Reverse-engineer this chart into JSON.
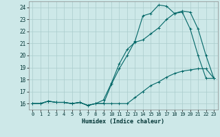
{
  "xlabel": "Humidex (Indice chaleur)",
  "xlim": [
    -0.5,
    23.5
  ],
  "ylim": [
    15.5,
    24.5
  ],
  "yticks": [
    16,
    17,
    18,
    19,
    20,
    21,
    22,
    23,
    24
  ],
  "xticks": [
    0,
    1,
    2,
    3,
    4,
    5,
    6,
    7,
    8,
    9,
    10,
    11,
    12,
    13,
    14,
    15,
    16,
    17,
    18,
    19,
    20,
    21,
    22,
    23
  ],
  "background_color": "#cde8e8",
  "grid_color": "#aacccc",
  "line_color": "#006666",
  "series1_x": [
    0,
    1,
    2,
    3,
    4,
    5,
    6,
    7,
    8,
    9,
    10,
    11,
    12,
    13,
    14,
    15,
    16,
    17,
    18,
    19,
    20,
    21,
    22,
    23
  ],
  "series1_y": [
    16.0,
    16.0,
    16.2,
    16.1,
    16.1,
    16.0,
    16.1,
    15.85,
    16.0,
    16.0,
    17.6,
    18.9,
    20.0,
    21.2,
    23.3,
    23.5,
    24.2,
    24.1,
    23.5,
    23.6,
    22.2,
    20.0,
    18.1,
    18.1
  ],
  "series2_x": [
    0,
    1,
    2,
    3,
    4,
    5,
    6,
    7,
    8,
    9,
    10,
    11,
    12,
    13,
    14,
    15,
    16,
    17,
    18,
    19,
    20,
    21,
    22,
    23
  ],
  "series2_y": [
    16.0,
    16.0,
    16.2,
    16.1,
    16.1,
    16.0,
    16.1,
    15.85,
    16.0,
    16.3,
    17.7,
    19.3,
    20.5,
    21.1,
    21.3,
    21.8,
    22.3,
    23.0,
    23.5,
    23.7,
    23.6,
    22.2,
    20.0,
    18.1
  ],
  "series3_x": [
    0,
    1,
    2,
    3,
    4,
    5,
    6,
    7,
    8,
    9,
    10,
    11,
    12,
    13,
    14,
    15,
    16,
    17,
    18,
    19,
    20,
    21,
    22,
    23
  ],
  "series3_y": [
    16.0,
    16.0,
    16.2,
    16.1,
    16.1,
    16.0,
    16.1,
    15.85,
    16.0,
    16.0,
    16.0,
    16.0,
    16.0,
    16.5,
    17.0,
    17.5,
    17.8,
    18.2,
    18.5,
    18.7,
    18.8,
    18.9,
    18.9,
    18.1
  ]
}
